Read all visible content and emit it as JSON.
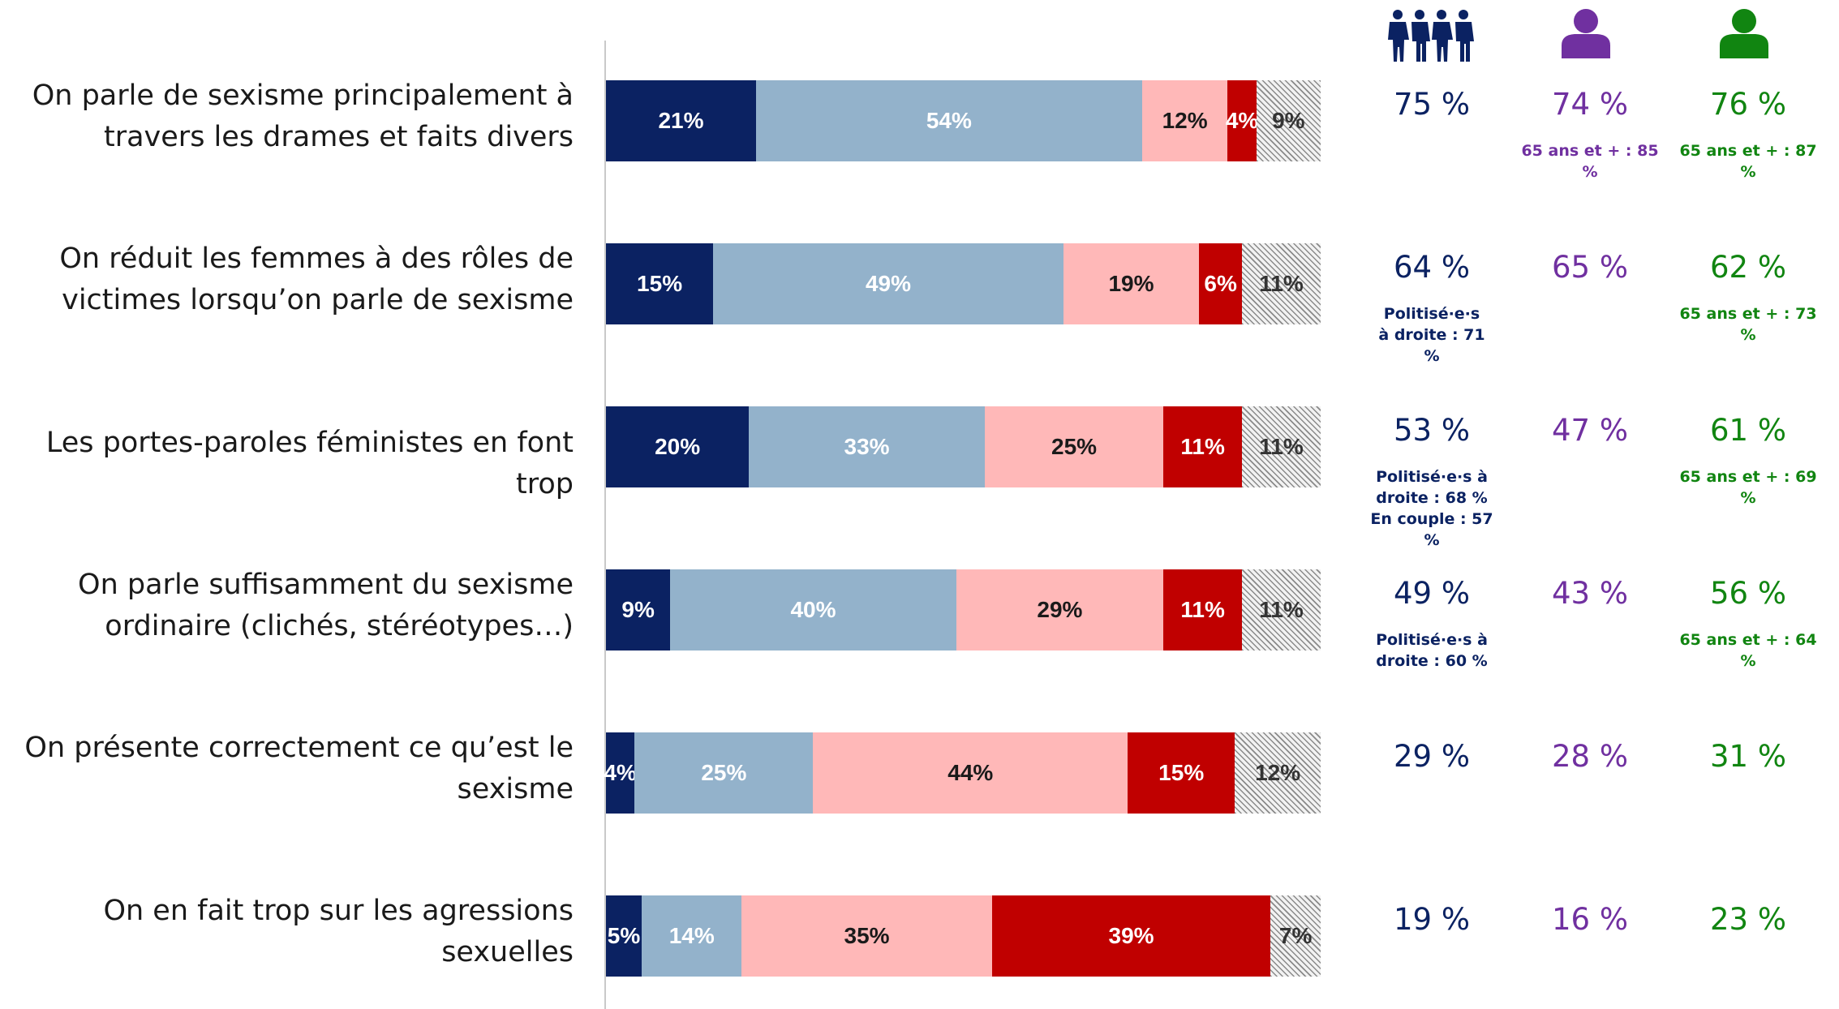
{
  "colors": {
    "tout_a_fait": "#0b2262",
    "plutot": "#93b2cb",
    "plutot_pas": "#ffb8b8",
    "pas_du_tout": "#c00000",
    "nsp": "#ededed",
    "total_col": "#0b2262",
    "femmes_col": "#7030a0",
    "hommes_col": "#118511"
  },
  "icons": [
    "group-people-icon",
    "woman-icon",
    "man-icon"
  ],
  "chart_data": {
    "type": "bar",
    "orientation": "horizontal-stacked-100",
    "series_colors": [
      "#0b2262",
      "#93b2cb",
      "#ffb8b8",
      "#c00000",
      "#ededed"
    ],
    "categories": [
      "On parle de sexisme principalement à travers les drames et faits divers",
      "On réduit les femmes à des rôles de victimes lorsqu’on parle de sexisme",
      "Les portes-paroles féministes en font trop",
      "On parle suffisamment du sexisme ordinaire (clichés, stéréotypes…)",
      "On présente correctement ce qu’est le sexisme",
      "On en fait trop sur les agressions sexuelles"
    ],
    "rows": [
      {
        "label_lines": [
          "On parle de sexisme principalement à",
          "travers les drames et faits divers"
        ],
        "values": [
          21,
          54,
          12,
          4,
          9
        ],
        "total": "75 %",
        "femmes": "74 %",
        "hommes": "76 %",
        "total_note": [],
        "femmes_note": [
          "65 ans et + : 85 %"
        ],
        "hommes_note": [
          "65 ans et + : 87 %"
        ]
      },
      {
        "label_lines": [
          "On réduit les femmes à des rôles de",
          "victimes lorsqu’on parle de sexisme"
        ],
        "values": [
          15,
          49,
          19,
          6,
          11
        ],
        "total": "64 %",
        "femmes": "65 %",
        "hommes": "62 %",
        "total_note": [
          "Politisé·e·s",
          "à droite : 71",
          "%"
        ],
        "femmes_note": [],
        "hommes_note": [
          "65 ans et + : 73 %"
        ]
      },
      {
        "label_lines": [
          "Les portes-paroles féministes en font trop"
        ],
        "values": [
          20,
          33,
          25,
          11,
          11
        ],
        "total": "53 %",
        "femmes": "47 %",
        "hommes": "61 %",
        "total_note": [
          "Politisé·e·s  à",
          "droite : 68 %",
          "En couple : 57",
          "%"
        ],
        "femmes_note": [],
        "hommes_note": [
          "65 ans et + : 69 %"
        ]
      },
      {
        "label_lines": [
          "On parle suffisamment du sexisme",
          "ordinaire (clichés, stéréotypes…)"
        ],
        "values": [
          9,
          40,
          29,
          11,
          11
        ],
        "total": "49 %",
        "femmes": "43 %",
        "hommes": "56 %",
        "total_note": [
          "Politisé·e·s  à",
          "droite : 60 %"
        ],
        "femmes_note": [],
        "hommes_note": [
          "65 ans et + : 64 %"
        ]
      },
      {
        "label_lines": [
          "On présente correctement ce qu’est le",
          "sexisme"
        ],
        "values": [
          4,
          25,
          44,
          15,
          12
        ],
        "total": "29 %",
        "femmes": "28 %",
        "hommes": "31 %",
        "total_note": [],
        "femmes_note": [],
        "hommes_note": []
      },
      {
        "label_lines": [
          "On en fait trop sur les agressions",
          "sexuelles"
        ],
        "values": [
          5,
          14,
          35,
          39,
          7
        ],
        "total": "19 %",
        "femmes": "16 %",
        "hommes": "23 %",
        "total_note": [],
        "femmes_note": [],
        "hommes_note": []
      }
    ],
    "value_suffix": "%"
  }
}
